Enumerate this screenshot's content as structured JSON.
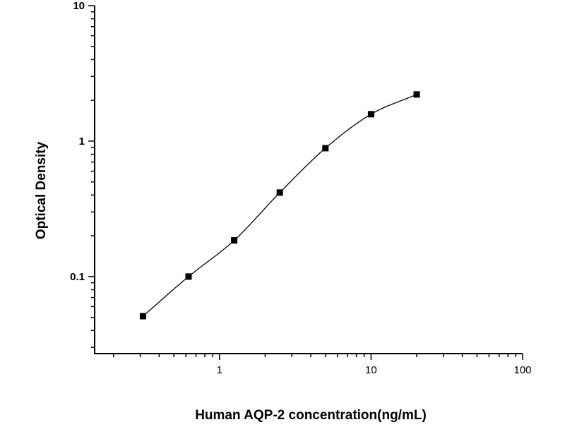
{
  "chart_data": {
    "type": "scatter",
    "title": "",
    "xlabel": "Human AQP-2 concentration(ng/mL)",
    "ylabel": "Optical Density",
    "xscale": "log",
    "yscale": "log",
    "xlim": [
      0.15,
      100
    ],
    "ylim": [
      0.027,
      10
    ],
    "x_ticks": [
      1,
      10,
      100
    ],
    "x_tick_labels": [
      "1",
      "10",
      "100"
    ],
    "y_ticks": [
      0.1,
      1,
      10
    ],
    "y_tick_labels": [
      "0.1",
      "1",
      "10"
    ],
    "grid": false,
    "legend": "none",
    "marker": "square",
    "fit_line": "smooth curve",
    "color": "#000000",
    "x": [
      0.3125,
      0.625,
      1.25,
      2.5,
      5,
      10,
      20
    ],
    "y": [
      0.051,
      0.1,
      0.185,
      0.417,
      0.887,
      1.58,
      2.21
    ]
  }
}
